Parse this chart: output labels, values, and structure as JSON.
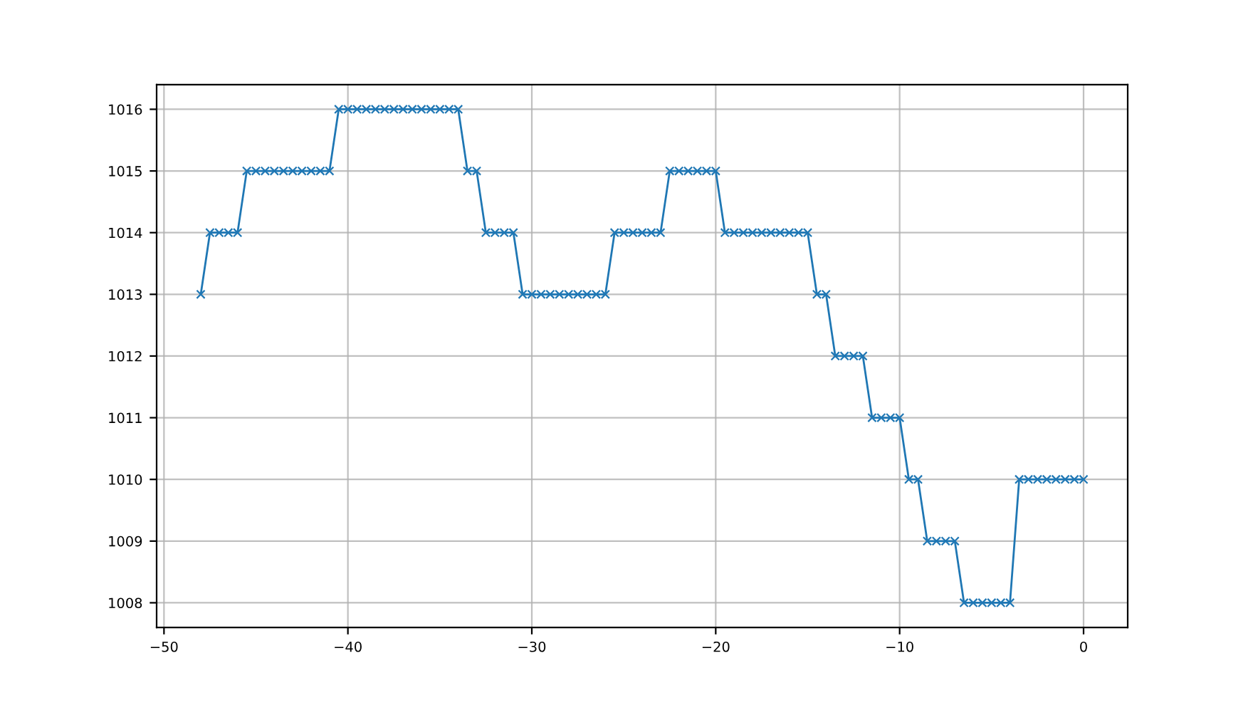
{
  "chart_data": {
    "type": "line",
    "x": [
      -48,
      -47.5,
      -47,
      -46.5,
      -46,
      -45.5,
      -45,
      -44.5,
      -44,
      -43.5,
      -43,
      -42.5,
      -42,
      -41.5,
      -41,
      -40.5,
      -40,
      -39.5,
      -39,
      -38.5,
      -38,
      -37.5,
      -37,
      -36.5,
      -36,
      -35.5,
      -35,
      -34.5,
      -34,
      -33.5,
      -33,
      -32.5,
      -32,
      -31.5,
      -31,
      -30.5,
      -30,
      -29.5,
      -29,
      -28.5,
      -28,
      -27.5,
      -27,
      -26.5,
      -26,
      -25.5,
      -25,
      -24.5,
      -24,
      -23.5,
      -23,
      -22.5,
      -22,
      -21.5,
      -21,
      -20.5,
      -20,
      -19.5,
      -19,
      -18.5,
      -18,
      -17.5,
      -17,
      -16.5,
      -16,
      -15.5,
      -15,
      -14.5,
      -14,
      -13.5,
      -13,
      -12.5,
      -12,
      -11.5,
      -11,
      -10.5,
      -10,
      -9.5,
      -9,
      -8.5,
      -8,
      -7.5,
      -7,
      -6.5,
      -6,
      -5.5,
      -5,
      -4.5,
      -4,
      -3.5,
      -3,
      -2.5,
      -2,
      -1.5,
      -1,
      -0.5,
      0
    ],
    "series": [
      {
        "color": "#1f77b4",
        "values": [
          1013,
          1014,
          1014,
          1014,
          1014,
          1015,
          1015,
          1015,
          1015,
          1015,
          1015,
          1015,
          1015,
          1015,
          1015,
          1016,
          1016,
          1016,
          1016,
          1016,
          1016,
          1016,
          1016,
          1016,
          1016,
          1016,
          1016,
          1016,
          1016,
          1015,
          1015,
          1014,
          1014,
          1014,
          1014,
          1013,
          1013,
          1013,
          1013,
          1013,
          1013,
          1013,
          1013,
          1013,
          1013,
          1014,
          1014,
          1014,
          1014,
          1014,
          1014,
          1015,
          1015,
          1015,
          1015,
          1015,
          1015,
          1014,
          1014,
          1014,
          1014,
          1014,
          1014,
          1014,
          1014,
          1014,
          1014,
          1013,
          1013,
          1012,
          1012,
          1012,
          1012,
          1011,
          1011,
          1011,
          1011,
          1010,
          1010,
          1009,
          1009,
          1009,
          1009,
          1008,
          1008,
          1008,
          1008,
          1008,
          1008,
          1010,
          1010,
          1010,
          1010,
          1010,
          1010,
          1010,
          1010
        ]
      }
    ],
    "xlim": [
      -50.4,
      2.4
    ],
    "ylim": [
      1007.6,
      1016.4
    ],
    "xticks": [
      -50,
      -40,
      -30,
      -20,
      -10,
      0
    ],
    "yticks": [
      1008,
      1009,
      1010,
      1011,
      1012,
      1013,
      1014,
      1015,
      1016
    ],
    "grid": true,
    "marker": "cross",
    "line_style": "solid"
  }
}
